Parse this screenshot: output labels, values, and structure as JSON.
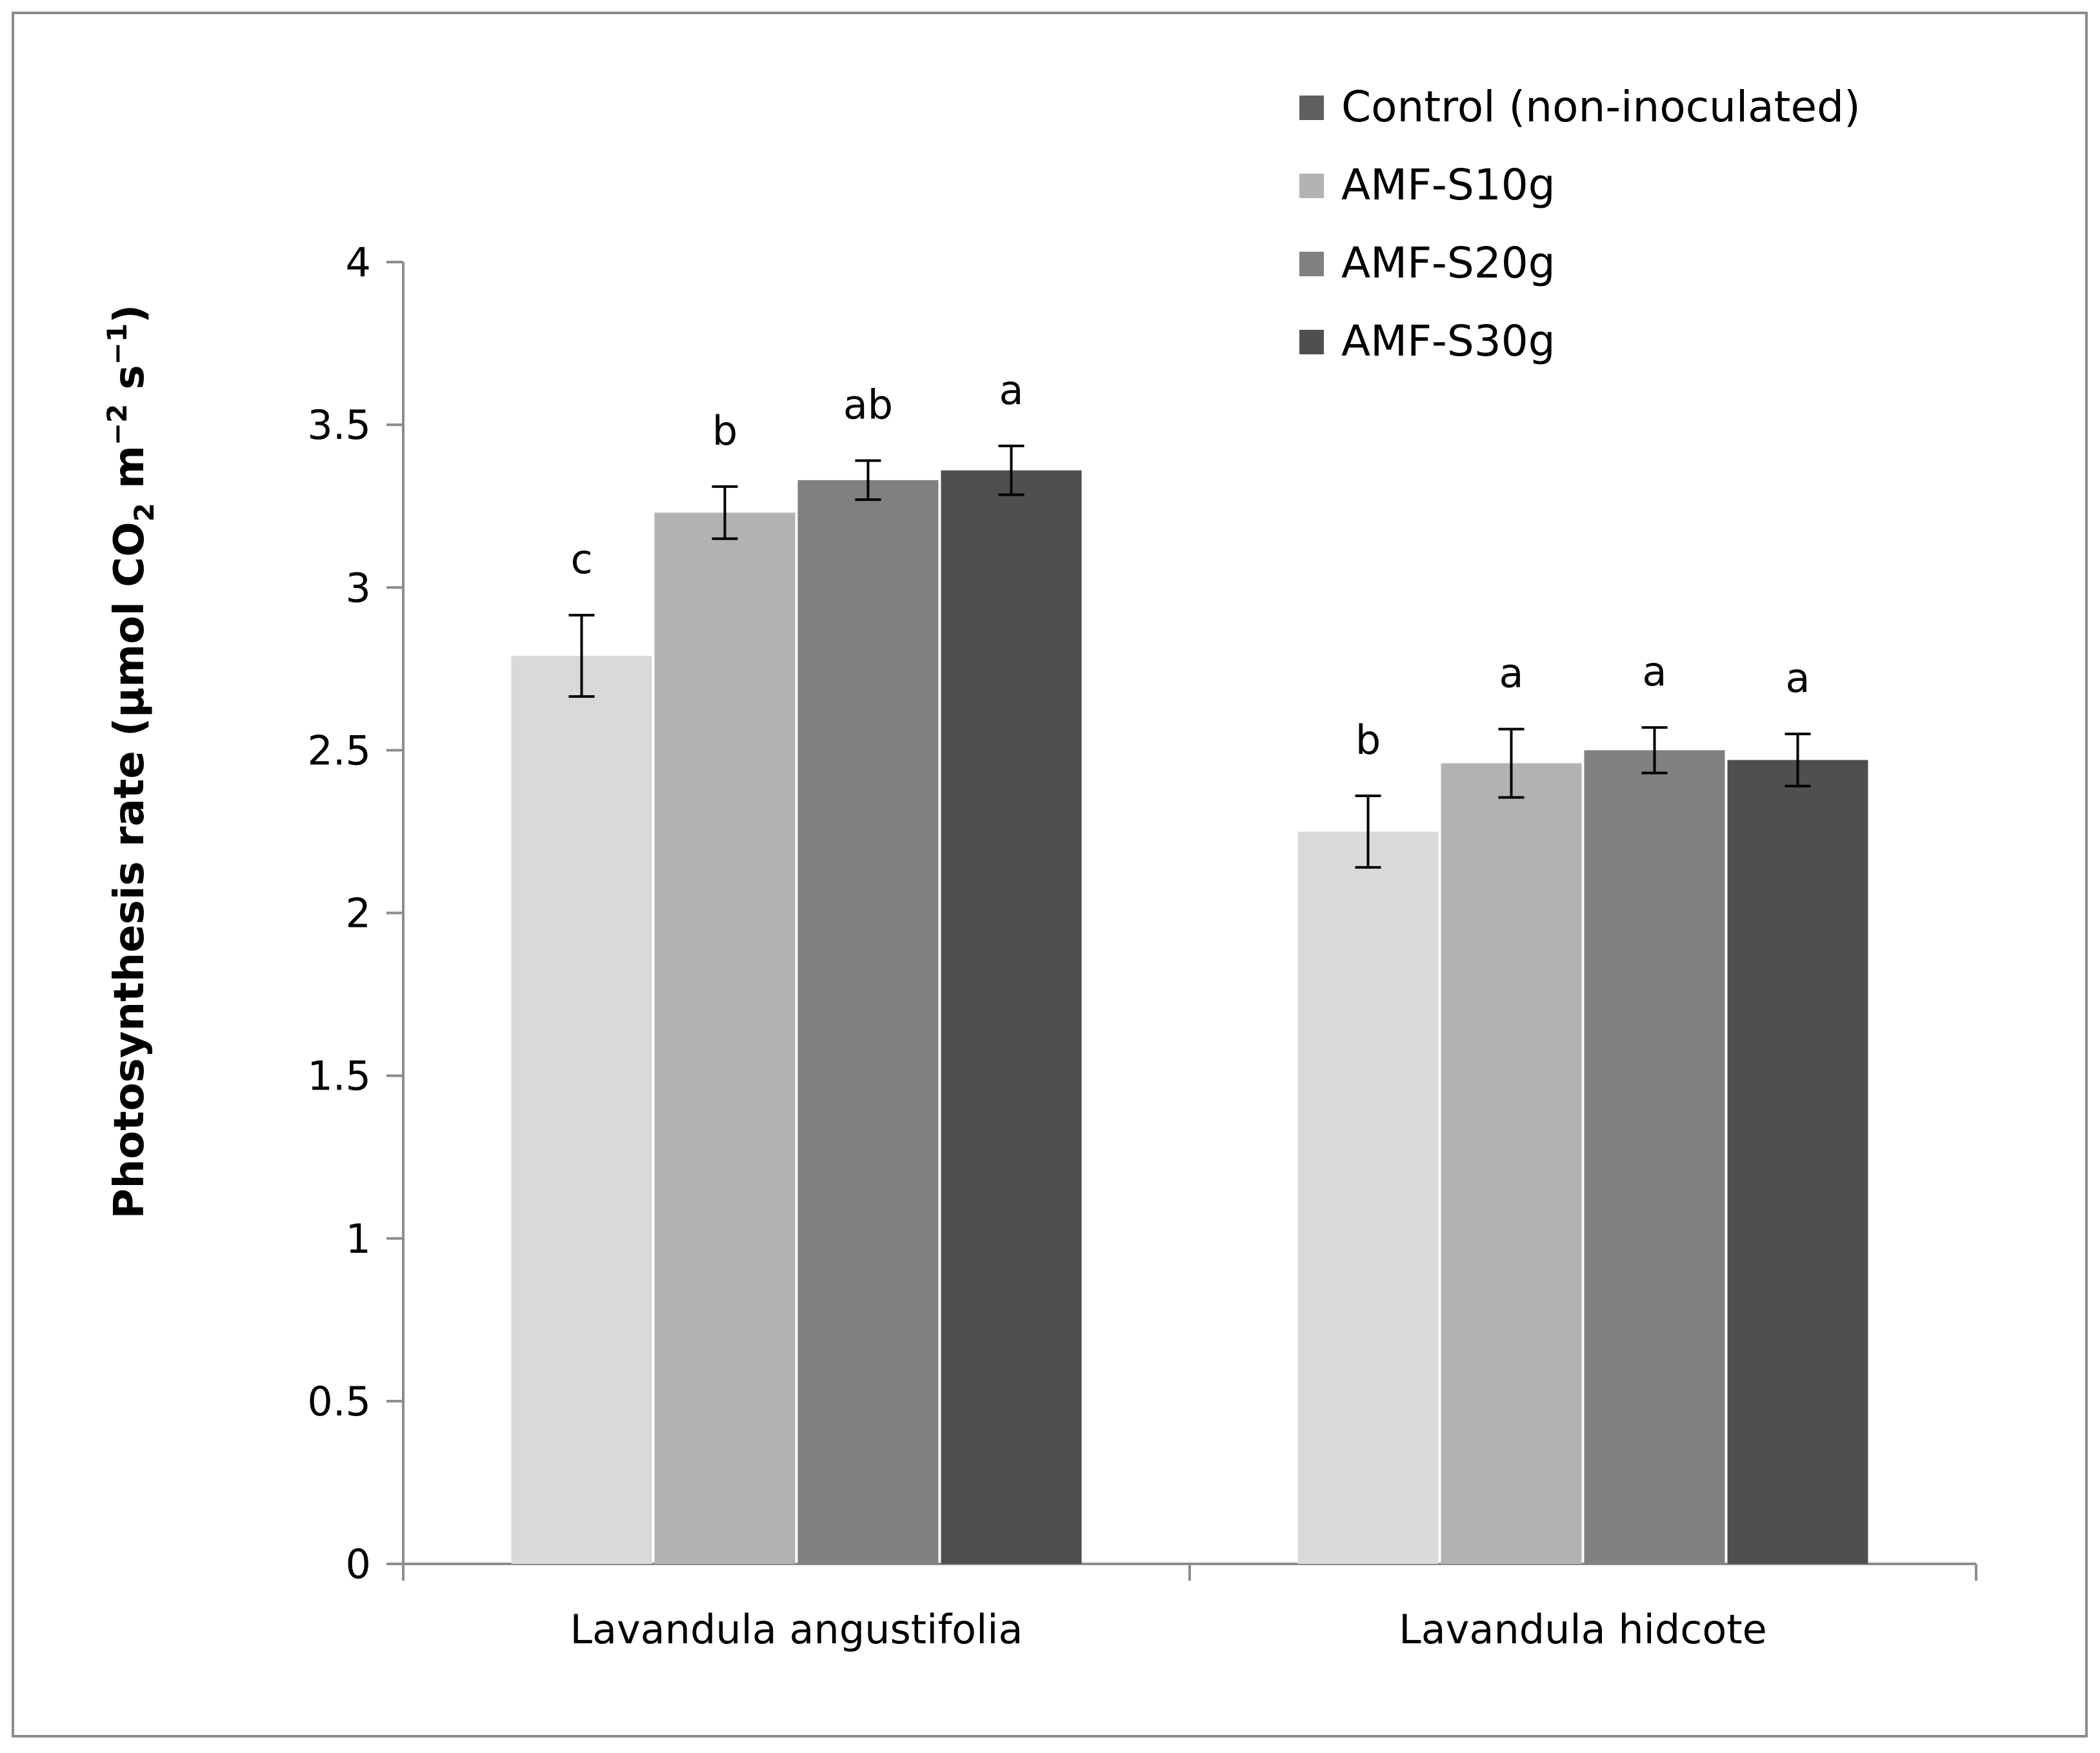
{
  "chart_data": {
    "type": "bar",
    "title": "",
    "xlabel": "",
    "ylabel": {
      "prefix": "Photosynthesis rate (µmol CO",
      "sub": "2",
      "mid": " m",
      "sup1": "−2",
      "mid2": " s",
      "sup2": "−1",
      "suffix": ")"
    },
    "ylim": [
      0,
      4
    ],
    "yticks": [
      "0",
      "0.5",
      "1",
      "1.5",
      "2",
      "2.5",
      "3",
      "3.5",
      "4"
    ],
    "grid": false,
    "legend_position": "top-right",
    "categories": [
      "Lavandula angustifolia",
      "Lavandula hidcote"
    ],
    "series": [
      {
        "name": "Control (non-inoculated)",
        "values": [
          2.79,
          2.25
        ],
        "errors": [
          0.125,
          0.11
        ],
        "letters": [
          "c",
          "b"
        ],
        "color": "#d9d9d9",
        "legend_color": "#5f5f5f"
      },
      {
        "name": "AMF-S10g",
        "values": [
          3.23,
          2.46
        ],
        "errors": [
          0.08,
          0.105
        ],
        "letters": [
          "b",
          "a"
        ],
        "color": "#b2b2b2",
        "legend_color": "#b2b2b2"
      },
      {
        "name": "AMF-S20g",
        "values": [
          3.33,
          2.5
        ],
        "errors": [
          0.06,
          0.07
        ],
        "letters": [
          "ab",
          "a"
        ],
        "color": "#808080",
        "legend_color": "#808080"
      },
      {
        "name": "AMF-S30g",
        "values": [
          3.36,
          2.47
        ],
        "errors": [
          0.075,
          0.08
        ],
        "letters": [
          "a",
          "a"
        ],
        "color": "#4f4f4f",
        "legend_color": "#4f4f4f"
      }
    ]
  }
}
